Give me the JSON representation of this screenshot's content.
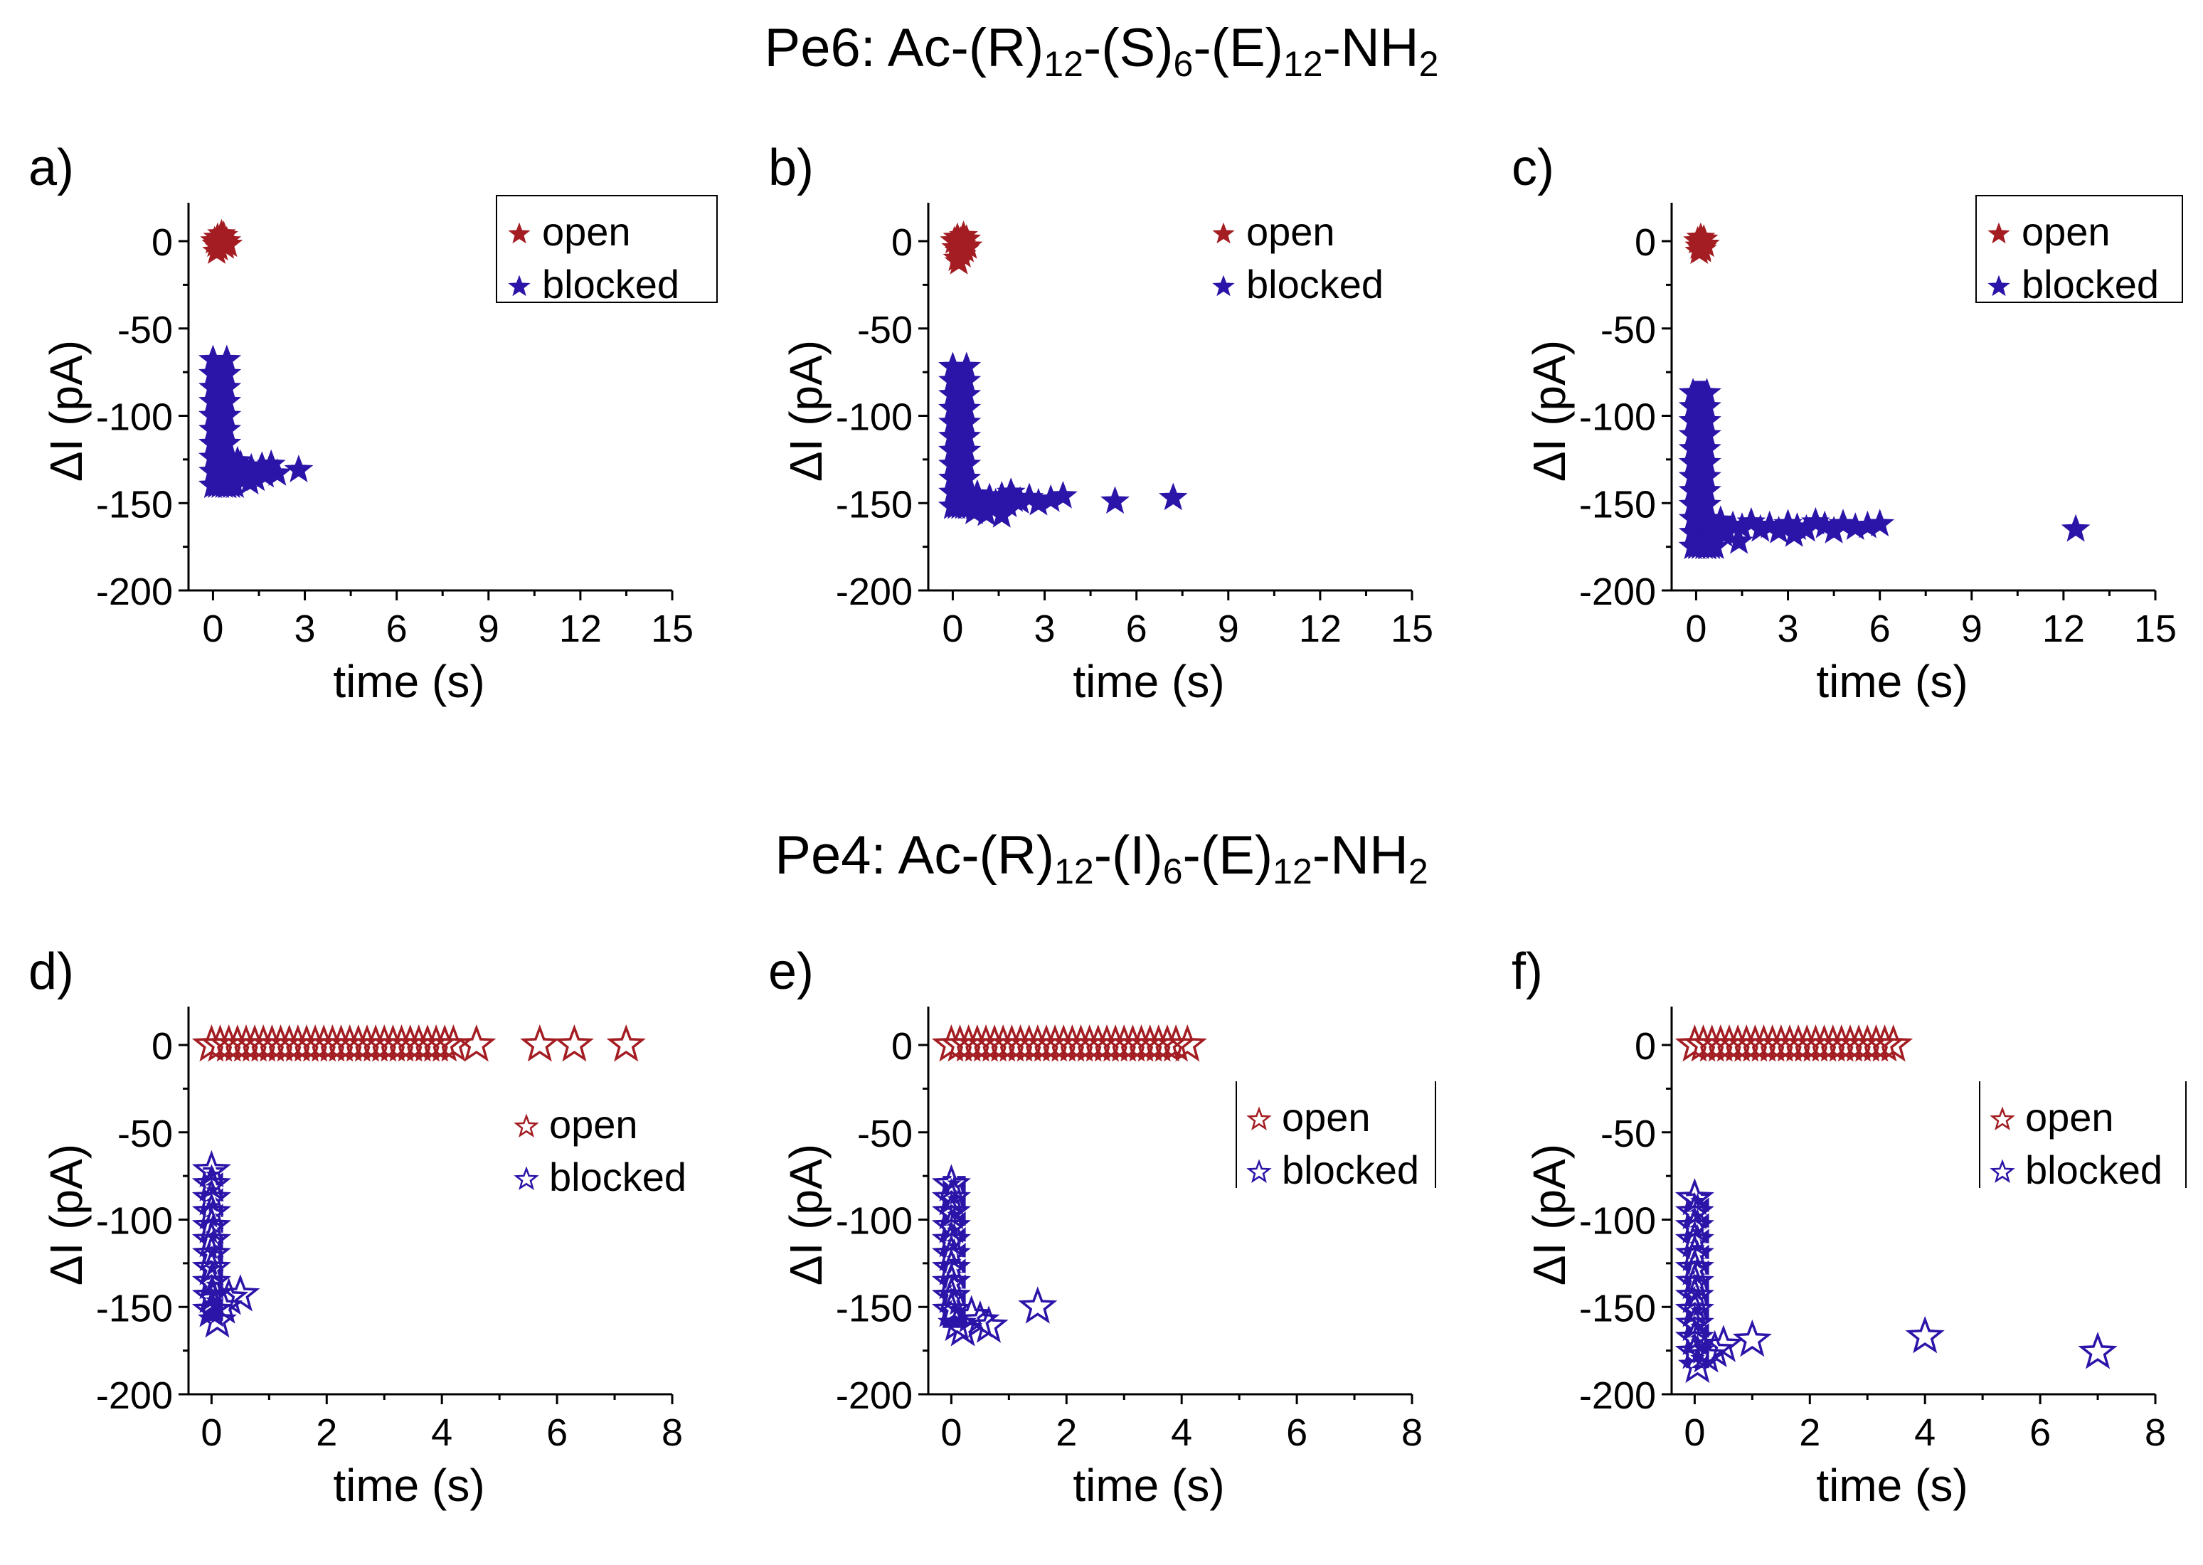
{
  "titles": {
    "row1": {
      "prefix": "Pe6: Ac-(R)",
      "s1": "12",
      "m1": "-(S)",
      "s2": "6",
      "m2": "-(E)",
      "s3": "12",
      "m3": "-NH",
      "s4": "2"
    },
    "row2": {
      "prefix": "Pe4: Ac-(R)",
      "s1": "12",
      "m1": "-(I)",
      "s2": "6",
      "m2": "-(E)",
      "s3": "12",
      "m3": "-NH",
      "s4": "2"
    }
  },
  "colors": {
    "open": "#a31d22",
    "blocked": "#2b14a8",
    "axis": "#000000"
  },
  "chart_data": [
    {
      "type": "scatter",
      "panel_label": "a)",
      "xlabel": "time (s)",
      "ylabel": "ΔI (pA)",
      "xlim": [
        -0.8,
        15
      ],
      "ylim": [
        -200,
        22
      ],
      "xticks": [
        "0",
        "3",
        "6",
        "9",
        "12",
        "15"
      ],
      "yticks": [
        "0",
        "-50",
        "-100",
        "-150",
        "-200"
      ],
      "marker": "filled-star",
      "legend": [
        "open",
        "blocked"
      ],
      "legend_box": "full",
      "open": {
        "x": [
          0.05,
          0.1,
          0.15,
          0.2,
          0.25,
          0.3,
          0.35,
          0.4,
          0.45,
          0.5,
          0.12,
          0.28
        ],
        "y": [
          0,
          -2,
          2,
          -4,
          1,
          -1,
          3,
          -3,
          0,
          -2,
          -6,
          4
        ]
      },
      "blocked_block": {
        "x0": 0,
        "x1": 0.45,
        "y0": -140,
        "y1": -68
      },
      "blocked": {
        "x": [
          0.5,
          0.6,
          0.75,
          0.9,
          1.0,
          1.1,
          1.25,
          1.4,
          1.55,
          1.7,
          1.9,
          2.1,
          0.55,
          0.8,
          1.2,
          1.6,
          2.8
        ],
        "y": [
          -132,
          -135,
          -130,
          -128,
          -134,
          -133,
          -130,
          -136,
          -131,
          -134,
          -128,
          -133,
          -138,
          -126,
          -138,
          -129,
          -131
        ]
      }
    },
    {
      "type": "scatter",
      "panel_label": "b)",
      "xlabel": "time (s)",
      "ylabel": "ΔI (pA)",
      "xlim": [
        -0.8,
        15
      ],
      "ylim": [
        -200,
        22
      ],
      "xticks": [
        "0",
        "3",
        "6",
        "9",
        "12",
        "15"
      ],
      "yticks": [
        "0",
        "-50",
        "-100",
        "-150",
        "-200"
      ],
      "marker": "filled-star",
      "legend": [
        "open",
        "blocked"
      ],
      "legend_box": "none",
      "open": {
        "x": [
          0.05,
          0.1,
          0.15,
          0.2,
          0.25,
          0.3,
          0.35,
          0.4,
          0.45,
          0.5,
          0.15,
          0.3,
          0.2
        ],
        "y": [
          0,
          -4,
          2,
          -6,
          0,
          -2,
          3,
          -5,
          1,
          -3,
          -10,
          -8,
          -12
        ]
      },
      "blocked_block": {
        "x0": 0,
        "x1": 0.45,
        "y0": -152,
        "y1": -72
      },
      "blocked": {
        "x": [
          0.5,
          0.65,
          0.8,
          1.0,
          1.2,
          1.4,
          1.6,
          1.8,
          2.0,
          2.2,
          2.5,
          2.8,
          3.2,
          0.7,
          1.1,
          1.6,
          1.9,
          3.6,
          5.3,
          7.2
        ],
        "y": [
          -148,
          -150,
          -145,
          -152,
          -147,
          -150,
          -146,
          -151,
          -148,
          -149,
          -147,
          -150,
          -148,
          -155,
          -156,
          -157,
          -144,
          -146,
          -149,
          -147
        ]
      }
    },
    {
      "type": "scatter",
      "panel_label": "c)",
      "xlabel": "time (s)",
      "ylabel": "ΔI (pA)",
      "xlim": [
        -0.8,
        15
      ],
      "ylim": [
        -200,
        22
      ],
      "xticks": [
        "0",
        "3",
        "6",
        "9",
        "12",
        "15"
      ],
      "yticks": [
        "0",
        "-50",
        "-100",
        "-150",
        "-200"
      ],
      "marker": "filled-star",
      "legend": [
        "open",
        "blocked"
      ],
      "legend_box": "full",
      "open": {
        "x": [
          0.05,
          0.1,
          0.15,
          0.2,
          0.25,
          0.3,
          0.1,
          0.2
        ],
        "y": [
          0,
          -3,
          2,
          -5,
          1,
          -2,
          -6,
          -4
        ]
      },
      "blocked_block": {
        "x0": -0.1,
        "x1": 0.35,
        "y0": -175,
        "y1": -80
      },
      "blocked": {
        "x": [
          0.4,
          0.6,
          0.8,
          1.0,
          1.2,
          1.5,
          1.8,
          2.1,
          2.4,
          2.7,
          3.0,
          3.3,
          3.6,
          3.9,
          4.2,
          4.5,
          4.8,
          5.2,
          5.6,
          6.0,
          0.5,
          0.9,
          1.4,
          3.2,
          12.4
        ],
        "y": [
          -162,
          -165,
          -160,
          -166,
          -163,
          -164,
          -161,
          -165,
          -163,
          -166,
          -162,
          -164,
          -165,
          -161,
          -163,
          -166,
          -162,
          -164,
          -163,
          -162,
          -170,
          -168,
          -172,
          -168,
          -165
        ]
      }
    },
    {
      "type": "scatter",
      "panel_label": "d)",
      "xlabel": "time (s)",
      "ylabel": "ΔI (pA)",
      "xlim": [
        -0.4,
        8
      ],
      "ylim": [
        -200,
        22
      ],
      "xticks": [
        "0",
        "2",
        "4",
        "6",
        "8"
      ],
      "yticks": [
        "0",
        "-50",
        "-100",
        "-150",
        "-200"
      ],
      "marker": "hollow-star",
      "legend": [
        "open",
        "blocked"
      ],
      "legend_box": "none",
      "open": {
        "x": [
          0.0,
          0.15,
          0.3,
          0.45,
          0.6,
          0.75,
          0.9,
          1.05,
          1.2,
          1.35,
          1.5,
          1.65,
          1.8,
          1.95,
          2.1,
          2.25,
          2.4,
          2.55,
          2.7,
          2.85,
          3.0,
          3.15,
          3.3,
          3.45,
          3.6,
          3.75,
          3.9,
          4.05,
          4.2,
          4.6,
          5.7,
          6.3,
          7.2
        ],
        "y": [
          0,
          0,
          0,
          0,
          0,
          0,
          0,
          0,
          0,
          0,
          0,
          0,
          0,
          0,
          0,
          0,
          0,
          0,
          0,
          0,
          0,
          0,
          0,
          0,
          0,
          0,
          0,
          0,
          0,
          0,
          0,
          0,
          0
        ]
      },
      "blocked_block": {
        "x0": -0.15,
        "x1": 0.2,
        "y0": -158,
        "y1": -70
      },
      "blocked": {
        "x": [
          0.0,
          0.0,
          0.0,
          0.0,
          0.0,
          0.0,
          0.0,
          0.0,
          0.0,
          0.0,
          0.0,
          0.1,
          0.2,
          0.3,
          0.5
        ],
        "y": [
          -72,
          -80,
          -88,
          -96,
          -104,
          -112,
          -120,
          -128,
          -136,
          -144,
          -152,
          -158,
          -150,
          -145,
          -143
        ]
      }
    },
    {
      "type": "scatter",
      "panel_label": "e)",
      "xlabel": "time (s)",
      "ylabel": "ΔI (pA)",
      "xlim": [
        -0.4,
        8
      ],
      "ylim": [
        -200,
        22
      ],
      "xticks": [
        "0",
        "2",
        "4",
        "6",
        "8"
      ],
      "yticks": [
        "0",
        "-50",
        "-100",
        "-150",
        "-200"
      ],
      "marker": "hollow-star",
      "legend": [
        "open",
        "blocked"
      ],
      "legend_box": "left-right",
      "open": {
        "x": [
          0.0,
          0.15,
          0.3,
          0.45,
          0.6,
          0.75,
          0.9,
          1.05,
          1.2,
          1.35,
          1.5,
          1.65,
          1.8,
          1.95,
          2.1,
          2.25,
          2.4,
          2.55,
          2.7,
          2.85,
          3.0,
          3.15,
          3.3,
          3.45,
          3.6,
          3.75,
          3.9,
          4.1
        ],
        "y": [
          0,
          0,
          0,
          0,
          0,
          0,
          0,
          0,
          0,
          0,
          0,
          0,
          0,
          0,
          0,
          0,
          0,
          0,
          0,
          0,
          0,
          0,
          0,
          0,
          0,
          0,
          0,
          0
        ]
      },
      "blocked_block": {
        "x0": -0.15,
        "x1": 0.25,
        "y0": -162,
        "y1": -75
      },
      "blocked": {
        "x": [
          0.0,
          0.0,
          0.0,
          0.0,
          0.0,
          0.0,
          0.0,
          0.0,
          0.0,
          0.0,
          0.1,
          0.2,
          0.35,
          0.5,
          0.65,
          1.5
        ],
        "y": [
          -80,
          -88,
          -96,
          -104,
          -112,
          -120,
          -128,
          -136,
          -144,
          -152,
          -160,
          -163,
          -155,
          -158,
          -161,
          -150
        ]
      }
    },
    {
      "type": "scatter",
      "panel_label": "f)",
      "xlabel": "time (s)",
      "ylabel": "ΔI (pA)",
      "xlim": [
        -0.4,
        8
      ],
      "ylim": [
        -200,
        22
      ],
      "xticks": [
        "0",
        "2",
        "4",
        "6",
        "8"
      ],
      "yticks": [
        "0",
        "-50",
        "-100",
        "-150",
        "-200"
      ],
      "marker": "hollow-star",
      "legend": [
        "open",
        "blocked"
      ],
      "legend_box": "left-right",
      "open": {
        "x": [
          0.0,
          0.15,
          0.3,
          0.45,
          0.6,
          0.75,
          0.9,
          1.05,
          1.2,
          1.35,
          1.5,
          1.65,
          1.8,
          1.95,
          2.1,
          2.25,
          2.4,
          2.55,
          2.7,
          2.85,
          3.0,
          3.15,
          3.3,
          3.45
        ],
        "y": [
          0,
          0,
          0,
          0,
          0,
          0,
          0,
          0,
          0,
          0,
          0,
          0,
          0,
          0,
          0,
          0,
          0,
          0,
          0,
          0,
          0,
          0,
          0,
          0
        ]
      },
      "blocked_block": {
        "x0": -0.15,
        "x1": 0.25,
        "y0": -185,
        "y1": -85
      },
      "blocked": {
        "x": [
          0.0,
          0.0,
          0.0,
          0.0,
          0.0,
          0.0,
          0.0,
          0.0,
          0.0,
          0.0,
          0.0,
          0.0,
          0.05,
          0.2,
          0.35,
          0.5,
          1.0,
          4.0,
          7.0
        ],
        "y": [
          -88,
          -96,
          -104,
          -112,
          -120,
          -128,
          -136,
          -144,
          -152,
          -160,
          -168,
          -176,
          -184,
          -178,
          -175,
          -172,
          -169,
          -167,
          -176
        ]
      }
    }
  ]
}
